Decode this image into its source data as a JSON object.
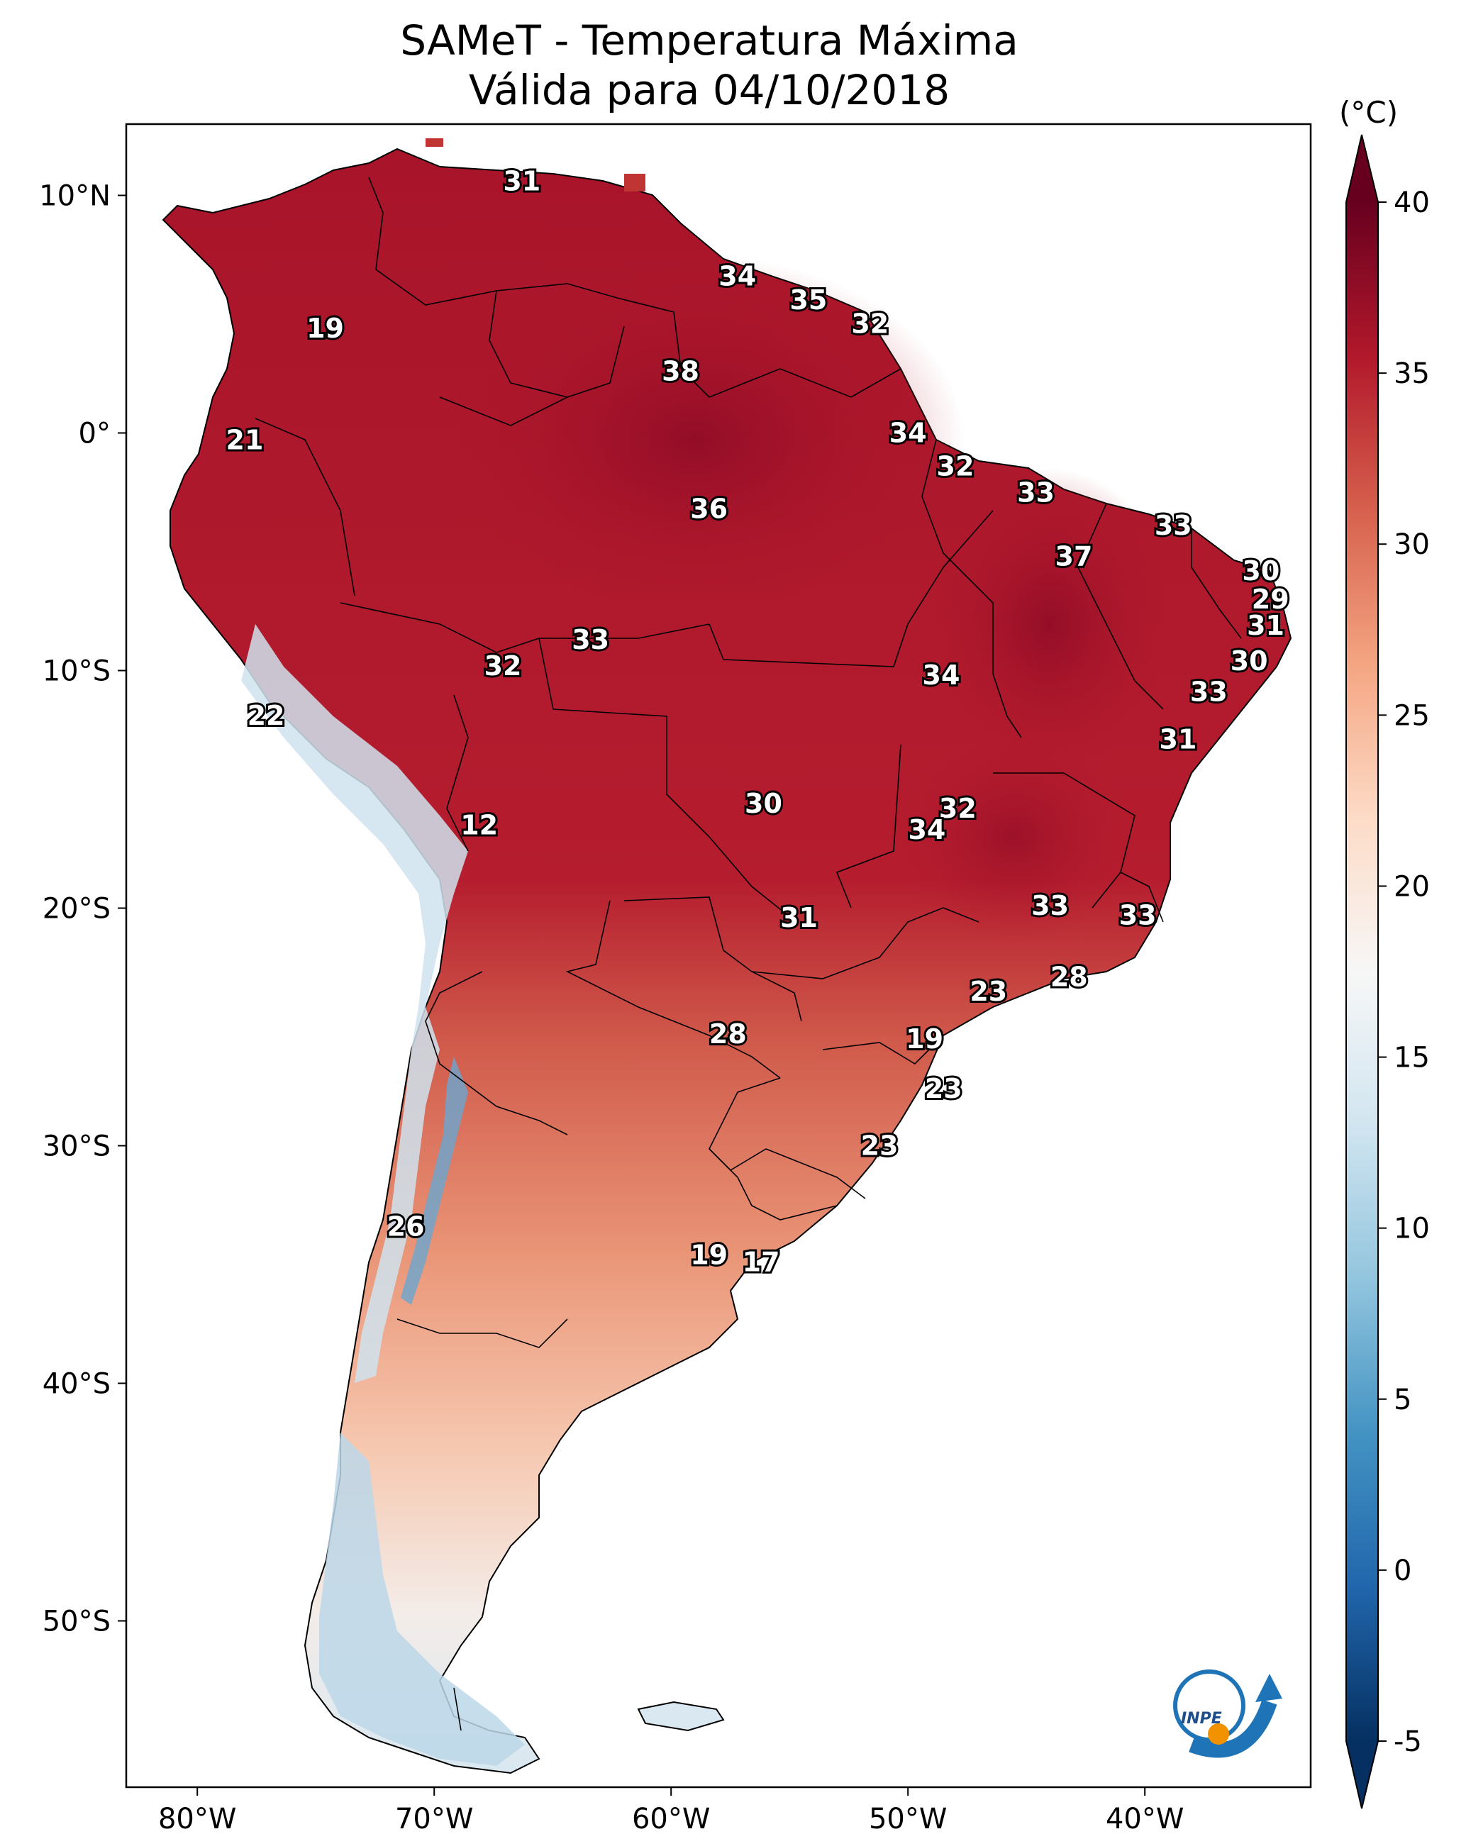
{
  "title": {
    "line1": "SAMeT - Temperatura Máxima",
    "line2": "Válida para 04/10/2018"
  },
  "map": {
    "lon_range": [
      -83,
      -33
    ],
    "lat_range": [
      -57,
      13
    ],
    "lon_ticks": [
      {
        "value": -80,
        "label": "80°W"
      },
      {
        "value": -70,
        "label": "70°W"
      },
      {
        "value": -60,
        "label": "60°W"
      },
      {
        "value": -50,
        "label": "50°W"
      },
      {
        "value": -40,
        "label": "40°W"
      }
    ],
    "lat_ticks": [
      {
        "value": 10,
        "label": "10°N"
      },
      {
        "value": 0,
        "label": "0°"
      },
      {
        "value": -10,
        "label": "10°S"
      },
      {
        "value": -20,
        "label": "20°S"
      },
      {
        "value": -30,
        "label": "30°S"
      },
      {
        "value": -40,
        "label": "40°S"
      },
      {
        "value": -50,
        "label": "50°S"
      }
    ],
    "station_values": [
      {
        "lon": -66.3,
        "lat": 10.6,
        "label": "31"
      },
      {
        "lon": -57.2,
        "lat": 6.6,
        "label": "34"
      },
      {
        "lon": -54.2,
        "lat": 5.6,
        "label": "35"
      },
      {
        "lon": -51.6,
        "lat": 4.6,
        "label": "32"
      },
      {
        "lon": -74.6,
        "lat": 4.4,
        "label": "19"
      },
      {
        "lon": -59.6,
        "lat": 2.6,
        "label": "38"
      },
      {
        "lon": -50.0,
        "lat": 0.0,
        "label": "34"
      },
      {
        "lon": -78.0,
        "lat": -0.3,
        "label": "21"
      },
      {
        "lon": -48.0,
        "lat": -1.4,
        "label": "32"
      },
      {
        "lon": -44.6,
        "lat": -2.5,
        "label": "33"
      },
      {
        "lon": -58.4,
        "lat": -3.2,
        "label": "36"
      },
      {
        "lon": -38.8,
        "lat": -3.9,
        "label": "33"
      },
      {
        "lon": -43.0,
        "lat": -5.2,
        "label": "37"
      },
      {
        "lon": -35.1,
        "lat": -5.8,
        "label": "30"
      },
      {
        "lon": -34.7,
        "lat": -7.0,
        "label": "29"
      },
      {
        "lon": -34.9,
        "lat": -8.1,
        "label": "31"
      },
      {
        "lon": -63.4,
        "lat": -8.7,
        "label": "33"
      },
      {
        "lon": -35.6,
        "lat": -9.6,
        "label": "30"
      },
      {
        "lon": -67.1,
        "lat": -9.8,
        "label": "32"
      },
      {
        "lon": -48.6,
        "lat": -10.2,
        "label": "34"
      },
      {
        "lon": -37.3,
        "lat": -10.9,
        "label": "33"
      },
      {
        "lon": -77.1,
        "lat": -11.9,
        "label": "22"
      },
      {
        "lon": -38.6,
        "lat": -12.9,
        "label": "31"
      },
      {
        "lon": -56.1,
        "lat": -15.6,
        "label": "30"
      },
      {
        "lon": -47.9,
        "lat": -15.8,
        "label": "32"
      },
      {
        "lon": -49.2,
        "lat": -16.7,
        "label": "34"
      },
      {
        "lon": -68.1,
        "lat": -16.5,
        "label": "12"
      },
      {
        "lon": -44.0,
        "lat": -19.9,
        "label": "33"
      },
      {
        "lon": -40.3,
        "lat": -20.3,
        "label": "33"
      },
      {
        "lon": -54.6,
        "lat": -20.4,
        "label": "31"
      },
      {
        "lon": -43.2,
        "lat": -22.9,
        "label": "28"
      },
      {
        "lon": -46.6,
        "lat": -23.5,
        "label": "23"
      },
      {
        "lon": -49.3,
        "lat": -25.5,
        "label": "19"
      },
      {
        "lon": -57.6,
        "lat": -25.3,
        "label": "28"
      },
      {
        "lon": -48.5,
        "lat": -27.6,
        "label": "23"
      },
      {
        "lon": -51.2,
        "lat": -30.0,
        "label": "23"
      },
      {
        "lon": -71.2,
        "lat": -33.4,
        "label": "26"
      },
      {
        "lon": -58.4,
        "lat": -34.6,
        "label": "19"
      },
      {
        "lon": -56.2,
        "lat": -34.9,
        "label": "17"
      }
    ],
    "logo": {
      "text": "INPE"
    }
  },
  "colorbar": {
    "unit": "(°C)",
    "range": [
      -5,
      40
    ],
    "ticks": [
      {
        "value": 40,
        "label": "40"
      },
      {
        "value": 35,
        "label": "35"
      },
      {
        "value": 30,
        "label": "30"
      },
      {
        "value": 25,
        "label": "25"
      },
      {
        "value": 20,
        "label": "20"
      },
      {
        "value": 15,
        "label": "15"
      },
      {
        "value": 10,
        "label": "10"
      },
      {
        "value": 5,
        "label": "5"
      },
      {
        "value": 0,
        "label": "0"
      },
      {
        "value": -5,
        "label": "-5"
      }
    ],
    "colors": [
      "#053061",
      "#2166ac",
      "#4393c3",
      "#92c5de",
      "#d1e5f0",
      "#f7f7f7",
      "#fddbc7",
      "#f4a582",
      "#d6604d",
      "#b2182b",
      "#67001f"
    ]
  }
}
